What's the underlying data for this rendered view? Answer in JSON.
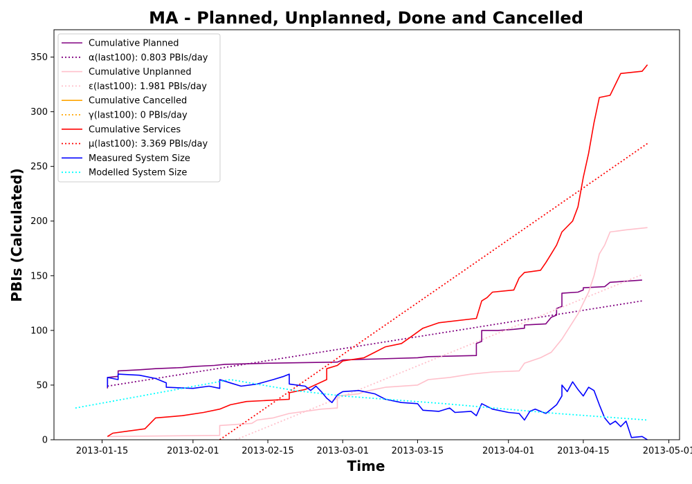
{
  "chart_data": {
    "type": "line",
    "title": "MA - Planned, Unplanned, Done  and Cancelled",
    "xlabel": "Time",
    "ylabel": "PBIs (Calculated)",
    "xlim": [
      "2013-01-06",
      "2013-05-03"
    ],
    "ylim": [
      0,
      375
    ],
    "x_ticks": [
      "2013-01-15",
      "2013-02-01",
      "2013-02-15",
      "2013-03-01",
      "2013-03-15",
      "2013-04-01",
      "2013-04-15",
      "2013-05-01"
    ],
    "y_ticks": [
      0,
      50,
      100,
      150,
      200,
      250,
      300,
      350
    ],
    "grid": false,
    "legend_position": "top-left",
    "series": [
      {
        "name": "Cumulative Planned",
        "color": "#800080",
        "style": "solid",
        "points": [
          [
            "2013-01-16",
            47
          ],
          [
            "2013-01-16",
            57
          ],
          [
            "2013-01-18",
            58
          ],
          [
            "2013-01-18",
            63
          ],
          [
            "2013-01-22",
            64
          ],
          [
            "2013-01-25",
            65
          ],
          [
            "2013-01-30",
            66
          ],
          [
            "2013-02-01",
            67
          ],
          [
            "2013-02-05",
            68
          ],
          [
            "2013-02-07",
            69
          ],
          [
            "2013-02-15",
            70
          ],
          [
            "2013-02-28",
            71
          ],
          [
            "2013-03-01",
            73
          ],
          [
            "2013-03-08",
            74
          ],
          [
            "2013-03-15",
            75
          ],
          [
            "2013-03-17",
            76
          ],
          [
            "2013-03-26",
            77
          ],
          [
            "2013-03-26",
            88
          ],
          [
            "2013-03-27",
            90
          ],
          [
            "2013-03-27",
            100
          ],
          [
            "2013-03-30",
            100
          ],
          [
            "2013-04-02",
            101
          ],
          [
            "2013-04-04",
            102
          ],
          [
            "2013-04-04",
            105
          ],
          [
            "2013-04-08",
            106
          ],
          [
            "2013-04-09",
            112
          ],
          [
            "2013-04-10",
            114
          ],
          [
            "2013-04-10",
            120
          ],
          [
            "2013-04-11",
            122
          ],
          [
            "2013-04-11",
            134
          ],
          [
            "2013-04-14",
            135
          ],
          [
            "2013-04-15",
            137
          ],
          [
            "2013-04-15",
            139
          ],
          [
            "2013-04-19",
            140
          ],
          [
            "2013-04-20",
            144
          ],
          [
            "2013-04-23",
            145
          ],
          [
            "2013-04-26",
            146
          ]
        ]
      },
      {
        "name": "α(last100): 0.803 PBIs/day",
        "color": "#800080",
        "style": "dotted",
        "points": [
          [
            "2013-01-16",
            49
          ],
          [
            "2013-04-26",
            127
          ]
        ]
      },
      {
        "name": "Cumulative Unplanned",
        "color": "#ffc0cb",
        "style": "solid",
        "points": [
          [
            "2013-01-16",
            3
          ],
          [
            "2013-02-06",
            4
          ],
          [
            "2013-02-06",
            13
          ],
          [
            "2013-02-12",
            15
          ],
          [
            "2013-02-13",
            18
          ],
          [
            "2013-02-16",
            20
          ],
          [
            "2013-02-19",
            24
          ],
          [
            "2013-02-22",
            26
          ],
          [
            "2013-02-25",
            28
          ],
          [
            "2013-02-28",
            29
          ],
          [
            "2013-02-28",
            40
          ],
          [
            "2013-03-04",
            42
          ],
          [
            "2013-03-05",
            44
          ],
          [
            "2013-03-06",
            45
          ],
          [
            "2013-03-09",
            48
          ],
          [
            "2013-03-15",
            50
          ],
          [
            "2013-03-17",
            55
          ],
          [
            "2013-03-21",
            57
          ],
          [
            "2013-03-25",
            60
          ],
          [
            "2013-03-29",
            62
          ],
          [
            "2013-04-03",
            63
          ],
          [
            "2013-04-04",
            70
          ],
          [
            "2013-04-07",
            75
          ],
          [
            "2013-04-09",
            80
          ],
          [
            "2013-04-11",
            92
          ],
          [
            "2013-04-14",
            115
          ],
          [
            "2013-04-15",
            125
          ],
          [
            "2013-04-16",
            135
          ],
          [
            "2013-04-17",
            150
          ],
          [
            "2013-04-18",
            170
          ],
          [
            "2013-04-19",
            178
          ],
          [
            "2013-04-20",
            190
          ],
          [
            "2013-04-23",
            192
          ],
          [
            "2013-04-27",
            194
          ]
        ]
      },
      {
        "name": "ε(last100): 1.981 PBIs/day",
        "color": "#ffc0cb",
        "style": "dotted",
        "points": [
          [
            "2013-02-09",
            0
          ],
          [
            "2013-04-26",
            151
          ]
        ]
      },
      {
        "name": "Cumulative Cancelled",
        "color": "#ffa500",
        "style": "solid",
        "points": []
      },
      {
        "name": "γ(last100): 0 PBIs/day",
        "color": "#ffa500",
        "style": "dotted",
        "points": []
      },
      {
        "name": "Cumulative Services",
        "color": "#ff0000",
        "style": "solid",
        "points": [
          [
            "2013-01-16",
            3
          ],
          [
            "2013-01-17",
            6
          ],
          [
            "2013-01-20",
            8
          ],
          [
            "2013-01-23",
            10
          ],
          [
            "2013-01-25",
            20
          ],
          [
            "2013-01-30",
            22
          ],
          [
            "2013-02-03",
            25
          ],
          [
            "2013-02-06",
            28
          ],
          [
            "2013-02-08",
            32
          ],
          [
            "2013-02-11",
            35
          ],
          [
            "2013-02-15",
            36
          ],
          [
            "2013-02-19",
            37
          ],
          [
            "2013-02-19",
            43
          ],
          [
            "2013-02-22",
            46
          ],
          [
            "2013-02-26",
            55
          ],
          [
            "2013-02-26",
            65
          ],
          [
            "2013-02-28",
            68
          ],
          [
            "2013-03-01",
            72
          ],
          [
            "2013-03-05",
            75
          ],
          [
            "2013-03-07",
            80
          ],
          [
            "2013-03-09",
            85
          ],
          [
            "2013-03-12",
            88
          ],
          [
            "2013-03-14",
            95
          ],
          [
            "2013-03-16",
            102
          ],
          [
            "2013-03-19",
            107
          ],
          [
            "2013-03-26",
            111
          ],
          [
            "2013-03-27",
            127
          ],
          [
            "2013-03-28",
            130
          ],
          [
            "2013-03-29",
            135
          ],
          [
            "2013-04-02",
            137
          ],
          [
            "2013-04-03",
            148
          ],
          [
            "2013-04-04",
            153
          ],
          [
            "2013-04-07",
            155
          ],
          [
            "2013-04-08",
            162
          ],
          [
            "2013-04-09",
            170
          ],
          [
            "2013-04-10",
            178
          ],
          [
            "2013-04-11",
            190
          ],
          [
            "2013-04-13",
            200
          ],
          [
            "2013-04-14",
            213
          ],
          [
            "2013-04-15",
            240
          ],
          [
            "2013-04-16",
            262
          ],
          [
            "2013-04-17",
            290
          ],
          [
            "2013-04-18",
            313
          ],
          [
            "2013-04-20",
            315
          ],
          [
            "2013-04-21",
            325
          ],
          [
            "2013-04-22",
            335
          ],
          [
            "2013-04-26",
            337
          ],
          [
            "2013-04-27",
            343
          ]
        ]
      },
      {
        "name": "μ(last100): 3.369 PBIs/day",
        "color": "#ff0000",
        "style": "dotted",
        "points": [
          [
            "2013-02-06",
            0
          ],
          [
            "2013-04-27",
            271
          ]
        ]
      },
      {
        "name": "Measured System Size",
        "color": "#0000ff",
        "style": "solid",
        "points": [
          [
            "2013-01-16",
            48
          ],
          [
            "2013-01-16",
            57
          ],
          [
            "2013-01-18",
            55
          ],
          [
            "2013-01-18",
            60
          ],
          [
            "2013-01-22",
            59
          ],
          [
            "2013-01-25",
            56
          ],
          [
            "2013-01-27",
            52
          ],
          [
            "2013-01-27",
            48
          ],
          [
            "2013-02-01",
            47
          ],
          [
            "2013-02-04",
            49
          ],
          [
            "2013-02-06",
            47
          ],
          [
            "2013-02-06",
            55
          ],
          [
            "2013-02-08",
            52
          ],
          [
            "2013-02-10",
            49
          ],
          [
            "2013-02-13",
            51
          ],
          [
            "2013-02-16",
            55
          ],
          [
            "2013-02-18",
            58
          ],
          [
            "2013-02-19",
            60
          ],
          [
            "2013-02-19",
            51
          ],
          [
            "2013-02-22",
            49
          ],
          [
            "2013-02-23",
            45
          ],
          [
            "2013-02-24",
            49
          ],
          [
            "2013-02-25",
            44
          ],
          [
            "2013-02-26",
            38
          ],
          [
            "2013-02-27",
            34
          ],
          [
            "2013-02-28",
            41
          ],
          [
            "2013-03-01",
            44
          ],
          [
            "2013-03-04",
            45
          ],
          [
            "2013-03-07",
            42
          ],
          [
            "2013-03-09",
            37
          ],
          [
            "2013-03-12",
            34
          ],
          [
            "2013-03-15",
            33
          ],
          [
            "2013-03-16",
            27
          ],
          [
            "2013-03-19",
            26
          ],
          [
            "2013-03-21",
            29
          ],
          [
            "2013-03-22",
            25
          ],
          [
            "2013-03-25",
            26
          ],
          [
            "2013-03-26",
            22
          ],
          [
            "2013-03-27",
            33
          ],
          [
            "2013-03-29",
            28
          ],
          [
            "2013-04-01",
            25
          ],
          [
            "2013-04-03",
            24
          ],
          [
            "2013-04-04",
            18
          ],
          [
            "2013-04-05",
            26
          ],
          [
            "2013-04-06",
            28
          ],
          [
            "2013-04-08",
            24
          ],
          [
            "2013-04-09",
            28
          ],
          [
            "2013-04-10",
            32
          ],
          [
            "2013-04-11",
            40
          ],
          [
            "2013-04-11",
            50
          ],
          [
            "2013-04-12",
            44
          ],
          [
            "2013-04-13",
            53
          ],
          [
            "2013-04-14",
            46
          ],
          [
            "2013-04-15",
            40
          ],
          [
            "2013-04-16",
            48
          ],
          [
            "2013-04-17",
            45
          ],
          [
            "2013-04-18",
            32
          ],
          [
            "2013-04-19",
            20
          ],
          [
            "2013-04-20",
            14
          ],
          [
            "2013-04-21",
            17
          ],
          [
            "2013-04-22",
            12
          ],
          [
            "2013-04-23",
            17
          ],
          [
            "2013-04-24",
            2
          ],
          [
            "2013-04-26",
            3
          ],
          [
            "2013-04-27",
            0
          ]
        ]
      },
      {
        "name": "Modelled System Size",
        "color": "#00ffff",
        "style": "dotted",
        "points": [
          [
            "2013-01-10",
            29
          ],
          [
            "2013-02-08",
            55
          ],
          [
            "2013-02-20",
            45
          ],
          [
            "2013-03-01",
            40
          ],
          [
            "2013-03-20",
            33
          ],
          [
            "2013-04-10",
            24
          ],
          [
            "2013-04-27",
            18
          ]
        ]
      }
    ]
  }
}
